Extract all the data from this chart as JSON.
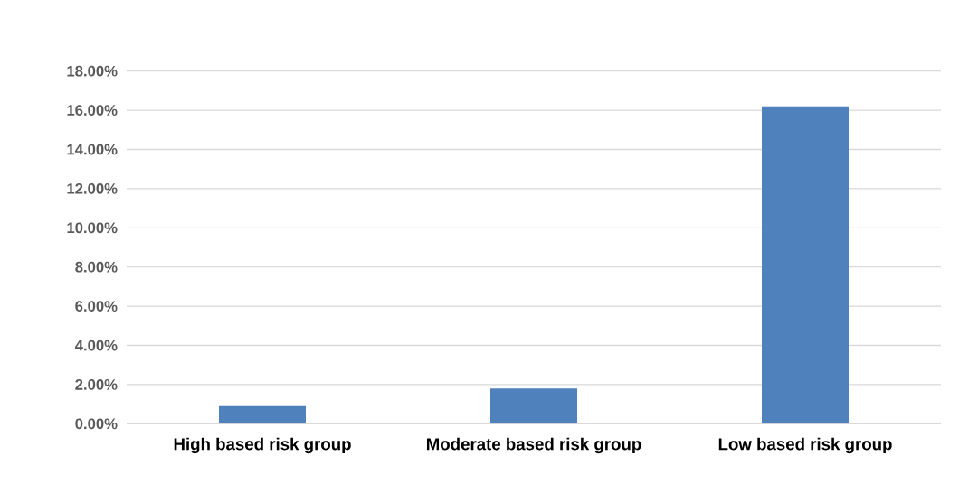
{
  "chart_data": {
    "type": "bar",
    "categories": [
      "High based risk group",
      "Moderate based risk group",
      "Low based risk group"
    ],
    "values": [
      0.9,
      1.8,
      16.2
    ],
    "color": "#4f81bd",
    "ylim": [
      0,
      18
    ],
    "yticks": [
      {
        "value": 0,
        "label": "0.00%"
      },
      {
        "value": 2,
        "label": "2.00%"
      },
      {
        "value": 4,
        "label": "4.00%"
      },
      {
        "value": 6,
        "label": "6.00%"
      },
      {
        "value": 8,
        "label": "8.00%"
      },
      {
        "value": 10,
        "label": "10.00%"
      },
      {
        "value": 12,
        "label": "12.00%"
      },
      {
        "value": 14,
        "label": "14.00%"
      },
      {
        "value": 16,
        "label": "16.00%"
      },
      {
        "value": 18,
        "label": "18.00%"
      }
    ],
    "grid": "y"
  }
}
